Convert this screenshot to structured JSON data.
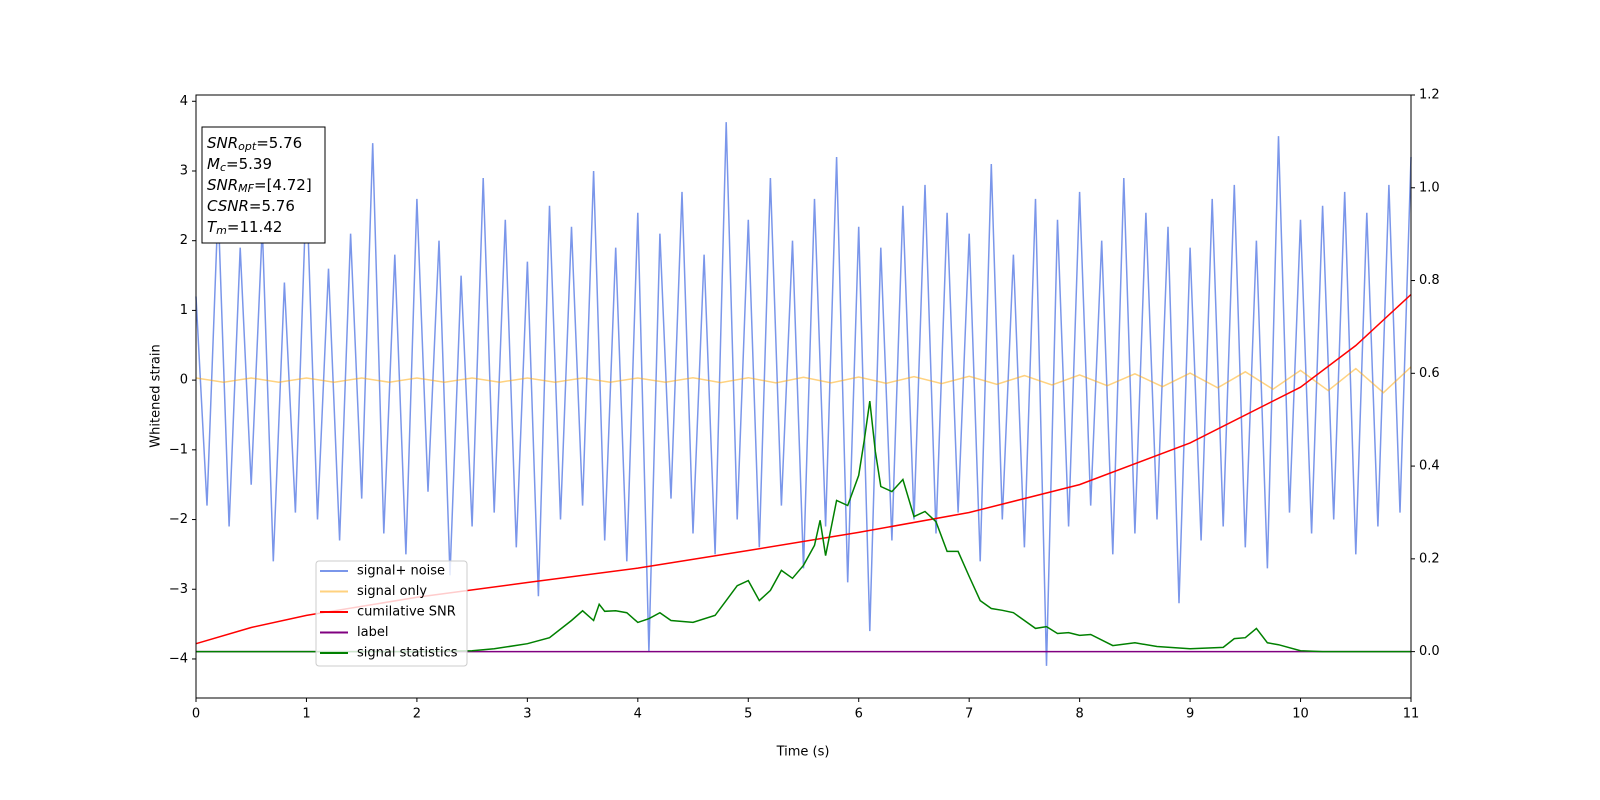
{
  "chart_data": {
    "type": "line",
    "xlabel": "Time (s)",
    "ylabel": "Whitened strain",
    "xlim": [
      0,
      11
    ],
    "xticks": [
      0,
      1,
      2,
      3,
      4,
      5,
      6,
      7,
      8,
      9,
      10,
      11
    ],
    "ylim": [
      -4.56,
      4.09
    ],
    "yticks": [
      {
        "value": -4,
        "label": "−4"
      },
      {
        "value": -3,
        "label": "−3"
      },
      {
        "value": -2,
        "label": "−2"
      },
      {
        "value": -1,
        "label": "−1"
      },
      0,
      1,
      2,
      3,
      4
    ],
    "y2lim": [
      -0.1,
      1.2
    ],
    "y2ticks": [
      {
        "value": 0,
        "label": "0.0"
      },
      0.2,
      0.4,
      0.6,
      0.8,
      {
        "value": 1,
        "label": "1.0"
      },
      1.2
    ],
    "legend": "lower left",
    "annotation": [
      {
        "main": "SNR",
        "sub": "opt",
        "text": "=5.76"
      },
      {
        "main": "M",
        "sub": "c",
        "text": "=5.39"
      },
      {
        "main": "SNR",
        "sub": "MF",
        "text": "=[4.72]"
      },
      {
        "main": "CSNR",
        "sub": "",
        "text": "=5.76"
      },
      {
        "main": "T",
        "sub": "m",
        "text": "=11.42"
      }
    ],
    "series": [
      {
        "name": "signal+ noise",
        "color": "#4169e1",
        "axis": "y",
        "x": [
          0,
          0.1,
          0.2,
          0.3,
          0.4,
          0.5,
          0.6,
          0.7,
          0.8,
          0.9,
          1,
          1.1,
          1.2,
          1.3,
          1.4,
          1.5,
          1.6,
          1.7,
          1.8,
          1.9,
          2,
          2.1,
          2.2,
          2.3,
          2.4,
          2.5,
          2.6,
          2.7,
          2.8,
          2.9,
          3,
          3.1,
          3.2,
          3.3,
          3.4,
          3.5,
          3.6,
          3.7,
          3.8,
          3.9,
          4,
          4.1,
          4.2,
          4.3,
          4.4,
          4.5,
          4.6,
          4.7,
          4.8,
          4.9,
          5,
          5.1,
          5.2,
          5.3,
          5.4,
          5.5,
          5.6,
          5.7,
          5.8,
          5.9,
          6,
          6.1,
          6.2,
          6.3,
          6.4,
          6.5,
          6.6,
          6.7,
          6.8,
          6.9,
          7,
          7.1,
          7.2,
          7.3,
          7.4,
          7.5,
          7.6,
          7.7,
          7.8,
          7.9,
          8,
          8.1,
          8.2,
          8.3,
          8.4,
          8.5,
          8.6,
          8.7,
          8.8,
          8.9,
          9,
          9.1,
          9.2,
          9.3,
          9.4,
          9.5,
          9.6,
          9.7,
          9.8,
          9.9,
          10,
          10.1,
          10.2,
          10.3,
          10.4,
          10.5,
          10.6,
          10.7,
          10.8,
          10.9,
          11
        ],
        "values": [
          1.2,
          -1.8,
          2.5,
          -2.1,
          1.9,
          -1.5,
          2.2,
          -2.6,
          1.4,
          -1.9,
          2.8,
          -2.0,
          1.6,
          -2.3,
          2.1,
          -1.7,
          3.4,
          -2.2,
          1.8,
          -2.5,
          2.6,
          -1.6,
          2.0,
          -2.8,
          1.5,
          -2.1,
          2.9,
          -1.9,
          2.3,
          -2.4,
          1.7,
          -3.1,
          2.5,
          -2.0,
          2.2,
          -1.8,
          3.0,
          -2.3,
          1.9,
          -2.6,
          2.4,
          -3.9,
          2.1,
          -1.7,
          2.7,
          -2.2,
          1.8,
          -2.5,
          3.7,
          -2.0,
          2.3,
          -2.4,
          2.9,
          -1.8,
          2.0,
          -2.7,
          2.6,
          -2.1,
          3.2,
          -2.9,
          2.2,
          -3.6,
          1.9,
          -2.3,
          2.5,
          -2.0,
          2.8,
          -2.2,
          2.4,
          -1.9,
          2.1,
          -2.6,
          3.1,
          -2.0,
          1.8,
          -2.4,
          2.6,
          -4.1,
          2.3,
          -2.1,
          2.7,
          -1.8,
          2.0,
          -2.5,
          2.9,
          -2.2,
          2.4,
          -2.0,
          2.2,
          -3.2,
          1.9,
          -2.3,
          2.6,
          -2.1,
          2.8,
          -2.4,
          2.0,
          -2.7,
          3.5,
          -1.9,
          2.3,
          -2.2,
          2.5,
          -2.0,
          2.7,
          -2.5,
          2.4,
          -2.1,
          2.8,
          -1.9,
          3.2
        ]
      },
      {
        "name": "signal only",
        "color": "#ffa500",
        "axis": "y",
        "x": [
          0,
          0.25,
          0.5,
          0.75,
          1,
          1.25,
          1.5,
          1.75,
          2,
          2.25,
          2.5,
          2.75,
          3,
          3.25,
          3.5,
          3.75,
          4,
          4.25,
          4.5,
          4.75,
          5,
          5.25,
          5.5,
          5.75,
          6,
          6.25,
          6.5,
          6.75,
          7,
          7.25,
          7.5,
          7.75,
          8,
          8.25,
          8.5,
          8.75,
          9,
          9.25,
          9.5,
          9.75,
          10,
          10.25,
          10.5,
          10.75,
          11
        ],
        "values": [
          0.03,
          -0.03,
          0.03,
          -0.03,
          0.03,
          -0.03,
          0.03,
          -0.03,
          0.03,
          -0.03,
          0.03,
          -0.03,
          0.03,
          -0.03,
          0.03,
          -0.03,
          0.03,
          -0.03,
          0.035,
          -0.035,
          0.035,
          -0.04,
          0.04,
          -0.04,
          0.045,
          -0.045,
          0.05,
          -0.05,
          0.055,
          -0.06,
          0.065,
          -0.07,
          0.075,
          -0.08,
          0.09,
          -0.095,
          0.1,
          -0.11,
          0.12,
          -0.13,
          0.14,
          -0.15,
          0.165,
          -0.18,
          0.19
        ]
      },
      {
        "name": "cumilative SNR",
        "color": "#ff0000",
        "axis": "y2",
        "x": [
          0,
          0.5,
          1,
          2,
          3,
          4,
          5,
          6,
          7,
          8,
          9,
          10,
          10.5,
          11
        ],
        "values": [
          0.017,
          0.052,
          0.078,
          0.117,
          0.149,
          0.18,
          0.218,
          0.257,
          0.3,
          0.36,
          0.45,
          0.57,
          0.66,
          0.77
        ]
      },
      {
        "name": "label",
        "color": "#800080",
        "axis": "y2",
        "x": [
          0,
          11
        ],
        "values": [
          0,
          0
        ]
      },
      {
        "name": "signal statistics",
        "color": "#008000",
        "axis": "y2",
        "x": [
          0,
          0.5,
          1,
          1.5,
          2,
          2.5,
          2.7,
          3.0,
          3.2,
          3.4,
          3.5,
          3.6,
          3.65,
          3.7,
          3.8,
          3.9,
          4.0,
          4.1,
          4.2,
          4.3,
          4.5,
          4.7,
          4.8,
          4.9,
          5.0,
          5.1,
          5.2,
          5.3,
          5.4,
          5.5,
          5.6,
          5.65,
          5.7,
          5.8,
          5.9,
          6.0,
          6.05,
          6.1,
          6.15,
          6.2,
          6.3,
          6.4,
          6.5,
          6.6,
          6.7,
          6.8,
          6.9,
          7.0,
          7.1,
          7.2,
          7.3,
          7.4,
          7.5,
          7.6,
          7.7,
          7.8,
          7.9,
          8.0,
          8.1,
          8.3,
          8.5,
          8.7,
          9.0,
          9.3,
          9.4,
          9.5,
          9.6,
          9.7,
          9.8,
          10.0,
          10.2,
          11
        ],
        "values": [
          0,
          0,
          0,
          0,
          0,
          0.002,
          0.006,
          0.017,
          0.03,
          0.067,
          0.088,
          0.067,
          0.102,
          0.087,
          0.088,
          0.084,
          0.063,
          0.071,
          0.084,
          0.067,
          0.063,
          0.078,
          0.11,
          0.142,
          0.153,
          0.11,
          0.132,
          0.175,
          0.158,
          0.186,
          0.229,
          0.283,
          0.207,
          0.326,
          0.315,
          0.38,
          0.455,
          0.54,
          0.432,
          0.356,
          0.345,
          0.371,
          0.291,
          0.302,
          0.28,
          0.216,
          0.216,
          0.162,
          0.11,
          0.093,
          0.089,
          0.084,
          0.067,
          0.05,
          0.054,
          0.039,
          0.041,
          0.035,
          0.037,
          0.013,
          0.019,
          0.011,
          0.006,
          0.009,
          0.028,
          0.03,
          0.05,
          0.019,
          0.015,
          0.002,
          0,
          0
        ]
      }
    ]
  }
}
